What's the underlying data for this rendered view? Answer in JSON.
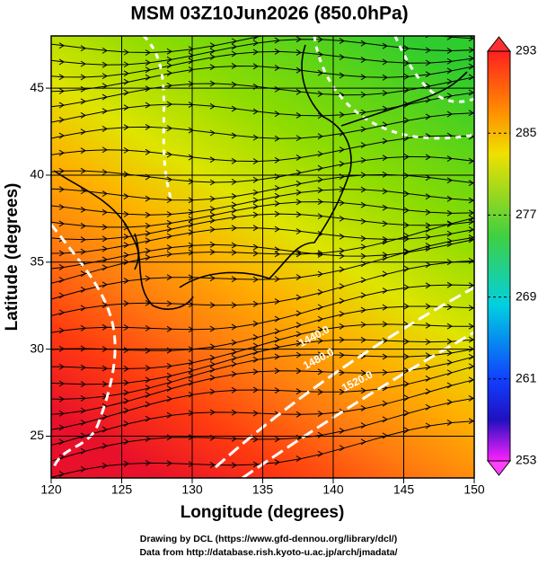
{
  "chart_data": {
    "type": "map",
    "title": "MSM 03Z10Jun2026 (850.0hPa)",
    "x_label": "Longitude (degrees)",
    "y_label": "Latitude  (degrees)",
    "xlim": [
      120,
      150
    ],
    "ylim": [
      22.6,
      48.0
    ],
    "xticks": [
      120,
      125,
      130,
      135,
      140,
      145,
      150
    ],
    "yticks": [
      25,
      30,
      35,
      40,
      45
    ],
    "grid": true,
    "colorbar": {
      "lim": [
        253,
        293
      ],
      "ticks": [
        253,
        261,
        269,
        277,
        285,
        293
      ]
    },
    "contour_labels": [
      "1440.0",
      "1480.0",
      "1520.0"
    ],
    "credits": [
      "Drawing by DCL (https://www.gfd-dennou.org/library/dcl/)",
      "Data from http://database.rish.kyoto-u.ac.jp/arch/jmadata/"
    ]
  }
}
